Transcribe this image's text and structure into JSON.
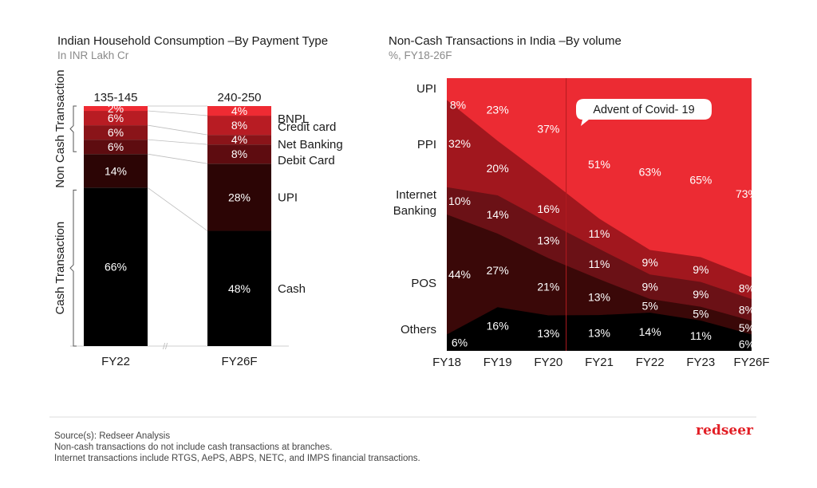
{
  "chart_data": [
    {
      "type": "bar",
      "title": "Indian Household Consumption –By Payment Type",
      "subtitle": "In INR Lakh Cr",
      "categories": [
        "FY22",
        "FY26F"
      ],
      "totals": [
        "135-145",
        "240-250"
      ],
      "group_labels": [
        "Non Cash Transaction",
        "Cash Transaction"
      ],
      "stacked": true,
      "series": [
        {
          "name": "Cash",
          "values": [
            66,
            48
          ],
          "labels": [
            "66%",
            "48%"
          ],
          "color": "#000000"
        },
        {
          "name": "UPI",
          "values": [
            14,
            28
          ],
          "labels": [
            "14%",
            "28%"
          ],
          "color": "#2c0505"
        },
        {
          "name": "Debit Card",
          "values": [
            6,
            8
          ],
          "labels": [
            "6%",
            "8%"
          ],
          "color": "#5e0c10"
        },
        {
          "name": "Net Banking",
          "values": [
            6,
            4
          ],
          "labels": [
            "6%",
            "4%"
          ],
          "color": "#8a1419"
        },
        {
          "name": "Credit card",
          "values": [
            6,
            8
          ],
          "labels": [
            "6%",
            "8%"
          ],
          "color": "#b81c23"
        },
        {
          "name": "BNPL",
          "values": [
            2,
            4
          ],
          "labels": [
            "2%",
            "4%"
          ],
          "color": "#ef2b33"
        }
      ]
    },
    {
      "type": "area",
      "title": "Non-Cash Transactions in India –By volume",
      "subtitle": "%, FY18-26F",
      "stacked": true,
      "x": [
        "FY18",
        "FY19",
        "FY20",
        "FY21",
        "FY22",
        "FY23",
        "FY26F"
      ],
      "annotation": "Advent of Covid- 19",
      "series": [
        {
          "name": "Others",
          "values": [
            6,
            16,
            13,
            13,
            14,
            11,
            6
          ],
          "labels": [
            "6%",
            "16%",
            "13%",
            "13%",
            "14%",
            "11%",
            "6%"
          ],
          "color": "#000000"
        },
        {
          "name": "POS",
          "values": [
            44,
            27,
            21,
            13,
            5,
            5,
            5
          ],
          "labels": [
            "44%",
            "27%",
            "21%",
            "13%",
            "5%",
            "5%",
            "5%"
          ],
          "color": "#3a0808"
        },
        {
          "name": "Internet Banking",
          "values": [
            10,
            14,
            13,
            11,
            9,
            9,
            8
          ],
          "labels": [
            "10%",
            "14%",
            "13%",
            "11%",
            "9%",
            "9%",
            "8%"
          ],
          "color": "#6b1116"
        },
        {
          "name": "PPI",
          "values": [
            32,
            20,
            16,
            11,
            9,
            9,
            8
          ],
          "labels": [
            "32%",
            "20%",
            "16%",
            "11%",
            "9%",
            "9%",
            "8%"
          ],
          "color": "#a1171e"
        },
        {
          "name": "UPI",
          "values": [
            8,
            23,
            37,
            51,
            63,
            65,
            73
          ],
          "labels": [
            "8%",
            "23%",
            "37%",
            "51%",
            "63%",
            "65%",
            "73%"
          ],
          "color": "#ec2b33"
        }
      ],
      "row_labels": [
        "UPI",
        "PPI",
        "Internet Banking",
        "POS",
        "Others"
      ]
    }
  ],
  "footer": {
    "source": "Source(s): Redseer Analysis",
    "note1": "Non-cash transactions do not include cash transactions at branches.",
    "note2": "Internet transactions include RTGS, AePS, ABPS, NETC, and IMPS financial transactions."
  },
  "brand": "redseer"
}
